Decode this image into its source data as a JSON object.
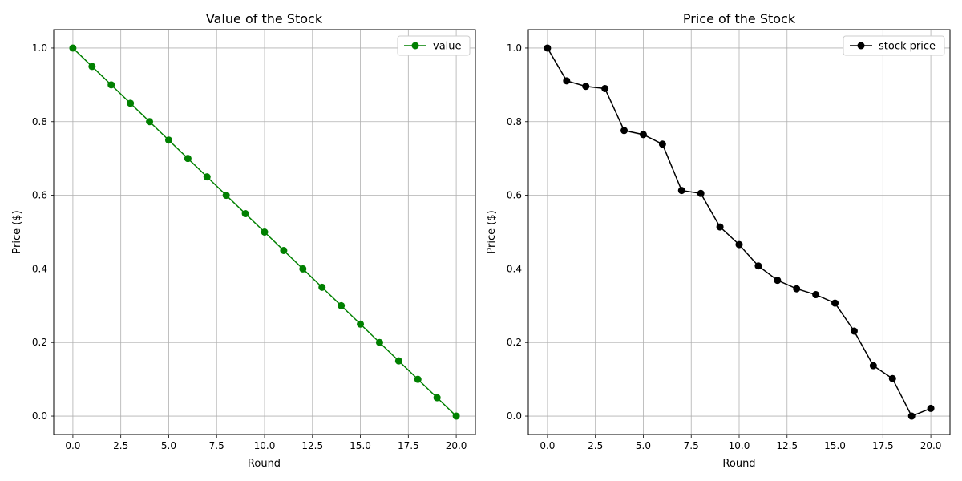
{
  "chart_data": [
    {
      "type": "line",
      "title": "Value of the Stock",
      "xlabel": "Round",
      "ylabel": "Price ($)",
      "xlim": [
        -1,
        21
      ],
      "ylim": [
        -0.05,
        1.05
      ],
      "xticks": [
        0,
        2.5,
        5,
        7.5,
        10,
        12.5,
        15,
        17.5,
        20
      ],
      "xtick_labels": [
        "0.0",
        "2.5",
        "5.0",
        "7.5",
        "10.0",
        "12.5",
        "15.0",
        "17.5",
        "20.0"
      ],
      "yticks": [
        0,
        0.2,
        0.4,
        0.6,
        0.8,
        1.0
      ],
      "ytick_labels": [
        "0.0",
        "0.2",
        "0.4",
        "0.6",
        "0.8",
        "1.0"
      ],
      "grid": true,
      "legend_position": "top-right",
      "x": [
        0,
        1,
        2,
        3,
        4,
        5,
        6,
        7,
        8,
        9,
        10,
        11,
        12,
        13,
        14,
        15,
        16,
        17,
        18,
        19,
        20
      ],
      "series": [
        {
          "name": "value",
          "color": "#008000",
          "values": [
            1.0,
            0.95,
            0.9,
            0.85,
            0.8,
            0.75,
            0.7,
            0.65,
            0.6,
            0.55,
            0.5,
            0.45,
            0.4,
            0.35,
            0.3,
            0.25,
            0.2,
            0.15,
            0.1,
            0.05,
            0.0
          ]
        }
      ]
    },
    {
      "type": "line",
      "title": "Price of the Stock",
      "xlabel": "Round",
      "ylabel": "Price ($)",
      "xlim": [
        -1,
        21
      ],
      "ylim": [
        -0.05,
        1.05
      ],
      "xticks": [
        0,
        2.5,
        5,
        7.5,
        10,
        12.5,
        15,
        17.5,
        20
      ],
      "xtick_labels": [
        "0.0",
        "2.5",
        "5.0",
        "7.5",
        "10.0",
        "12.5",
        "15.0",
        "17.5",
        "20.0"
      ],
      "yticks": [
        0,
        0.2,
        0.4,
        0.6,
        0.8,
        1.0
      ],
      "ytick_labels": [
        "0.0",
        "0.2",
        "0.4",
        "0.6",
        "0.8",
        "1.0"
      ],
      "grid": true,
      "legend_position": "top-right",
      "x": [
        0,
        1,
        2,
        3,
        4,
        5,
        6,
        7,
        8,
        9,
        10,
        11,
        12,
        13,
        14,
        15,
        16,
        17,
        18,
        19,
        20
      ],
      "series": [
        {
          "name": "stock price",
          "color": "#000000",
          "values": [
            1.0,
            0.911,
            0.896,
            0.89,
            0.776,
            0.765,
            0.739,
            0.613,
            0.605,
            0.514,
            0.466,
            0.408,
            0.369,
            0.346,
            0.33,
            0.307,
            0.231,
            0.137,
            0.102,
            0.0,
            0.021
          ]
        }
      ]
    }
  ]
}
